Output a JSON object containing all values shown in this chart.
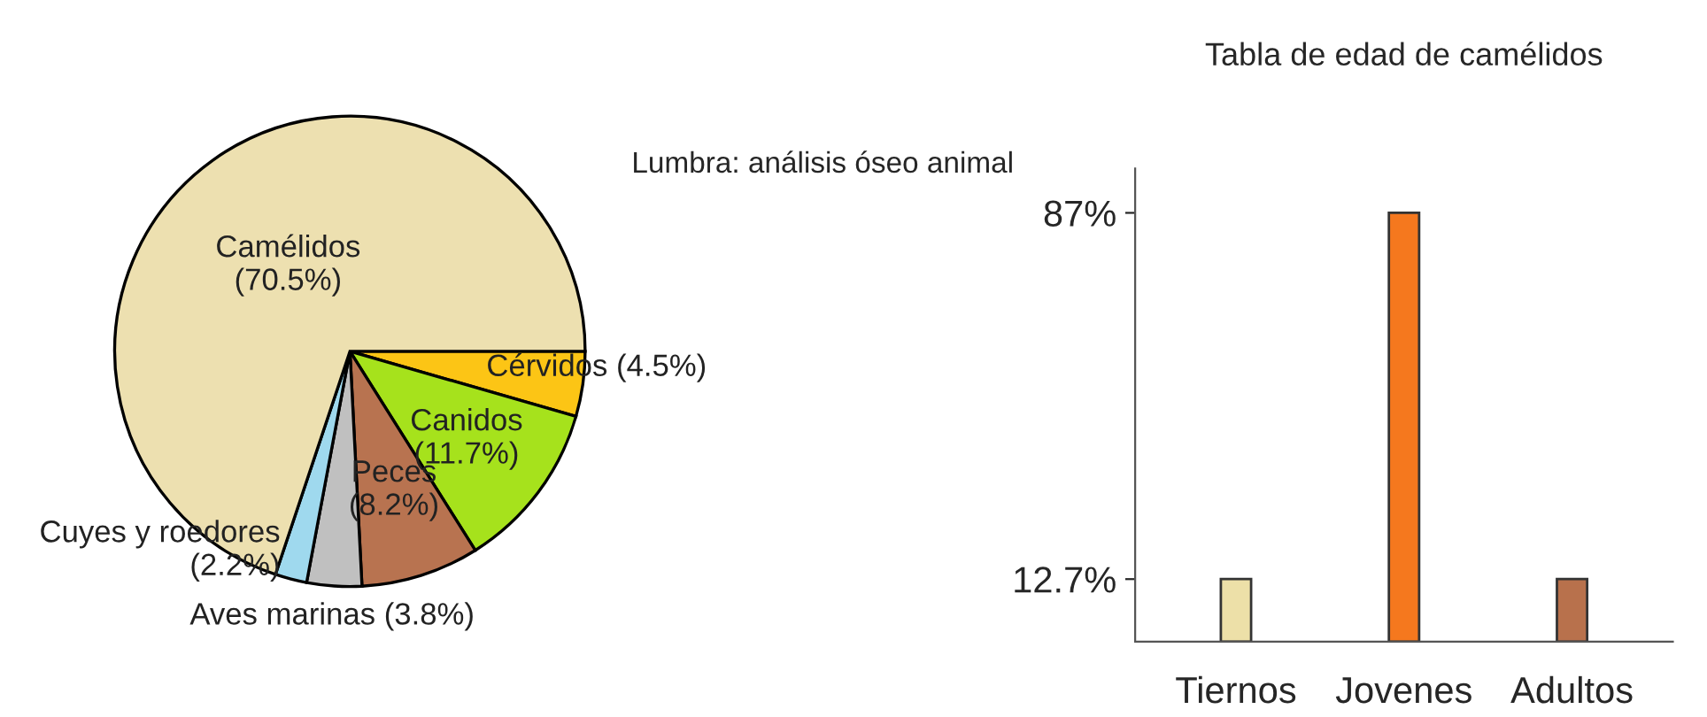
{
  "chart_data": [
    {
      "type": "pie",
      "title": "Lumbra: análisis óseo animal",
      "categories": [
        "Cérvidos",
        "Canidos",
        "Peces",
        "Aves marinas",
        "Cuyes y roedores",
        "Camélidos"
      ],
      "values": [
        4.5,
        11.7,
        8.2,
        3.8,
        2.2,
        70.5
      ],
      "value_labels": [
        "(4.5%)",
        "(11.7%)",
        "(8.2%)",
        "(3.8%)",
        "(2.2%)",
        "(70.5%)"
      ],
      "colors": [
        "#fcc515",
        "#a6e21c",
        "#b87350",
        "#c0c0c0",
        "#9fd9ee",
        "#ede0b0"
      ]
    },
    {
      "type": "bar",
      "title": "Tabla de edad de camélidos",
      "categories": [
        "Tiernos",
        "Jovenes",
        "Adultos"
      ],
      "values": [
        12.7,
        87,
        12.7
      ],
      "colors": [
        "#ede0a8",
        "#f5781e",
        "#b8714c"
      ],
      "ylim": [
        0,
        96
      ],
      "yticks": [
        {
          "value": 12.7,
          "label": "12.7%"
        },
        {
          "value": 87,
          "label": "87%"
        }
      ],
      "grid": false
    }
  ]
}
